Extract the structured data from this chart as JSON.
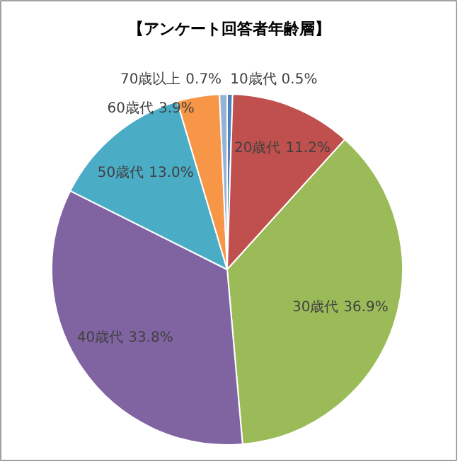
{
  "chart_data": {
    "type": "pie",
    "title": "【アンケート回答者年齢層】",
    "categories": [
      "10歳代",
      "20歳代",
      "30歳代",
      "40歳代",
      "50歳代",
      "60歳代",
      "70歳以上"
    ],
    "values": [
      0.5,
      11.2,
      36.9,
      33.8,
      13.0,
      3.9,
      0.7
    ],
    "colors": [
      "#4f81bd",
      "#c0504d",
      "#9bbb59",
      "#8064a2",
      "#4bacc6",
      "#f79646",
      "#95b3d7"
    ],
    "value_labels": [
      "0.5%",
      "11.2%",
      "36.9%",
      "33.8%",
      "13.0%",
      "3.9%",
      "0.7%"
    ],
    "data_labels": true
  }
}
